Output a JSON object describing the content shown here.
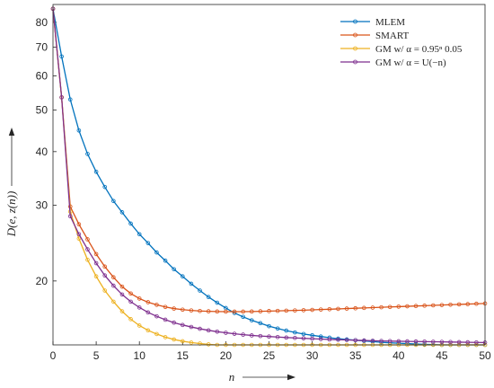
{
  "chart_data": {
    "type": "line",
    "xlabel": "n",
    "ylabel": "D(e, z(n))",
    "yscale": "log",
    "xlim": [
      0,
      50
    ],
    "ylim": [
      14.2,
      88
    ],
    "grid": false,
    "legend_position": "top-right",
    "xticks": [
      0,
      5,
      10,
      15,
      20,
      25,
      30,
      35,
      40,
      45,
      50
    ],
    "xtick_labels": [
      "0",
      "5",
      "10",
      "15",
      "20",
      "25",
      "30",
      "35",
      "40",
      "45",
      "50"
    ],
    "yticks": [
      20,
      30,
      40,
      50,
      60,
      70,
      80
    ],
    "ytick_labels": [
      "20",
      "30",
      "40",
      "50",
      "60",
      "70",
      "80"
    ],
    "series": [
      {
        "name": "MLEM",
        "color": "#0072BD",
        "x": [
          0,
          1,
          2,
          3,
          4,
          5,
          6,
          7,
          8,
          9,
          10,
          11,
          12,
          13,
          14,
          15,
          16,
          17,
          18,
          19,
          20,
          21,
          22,
          23,
          24,
          25,
          26,
          27,
          28,
          29,
          30,
          31,
          32,
          33,
          34,
          35,
          36,
          37,
          38,
          39,
          40,
          41,
          42,
          43,
          44,
          45,
          46,
          47,
          48,
          49,
          50
        ],
        "y": [
          86.0,
          66.6,
          52.9,
          44.8,
          39.5,
          35.9,
          33.1,
          30.7,
          28.9,
          27.2,
          25.7,
          24.5,
          23.3,
          22.3,
          21.3,
          20.5,
          19.7,
          19.0,
          18.35,
          17.8,
          17.3,
          16.85,
          16.5,
          16.2,
          15.95,
          15.7,
          15.5,
          15.33,
          15.18,
          15.05,
          14.95,
          14.85,
          14.76,
          14.68,
          14.62,
          14.56,
          14.5,
          14.45,
          14.4,
          14.36,
          14.33,
          14.3,
          14.27,
          14.24,
          14.22,
          14.2,
          14.18,
          14.17,
          14.15,
          14.13,
          14.1
        ]
      },
      {
        "name": "SMART",
        "color": "#D95319",
        "x": [
          0,
          1,
          2,
          3,
          4,
          5,
          6,
          7,
          8,
          9,
          10,
          11,
          12,
          13,
          14,
          15,
          16,
          17,
          18,
          19,
          20,
          21,
          22,
          23,
          24,
          25,
          26,
          27,
          28,
          29,
          30,
          31,
          32,
          33,
          34,
          35,
          36,
          37,
          38,
          39,
          40,
          41,
          42,
          43,
          44,
          45,
          46,
          47,
          48,
          49,
          50
        ],
        "y": [
          86.0,
          53.5,
          29.8,
          27.1,
          25.0,
          23.1,
          21.6,
          20.4,
          19.4,
          18.7,
          18.2,
          17.85,
          17.6,
          17.4,
          17.25,
          17.15,
          17.08,
          17.03,
          17.0,
          16.98,
          16.97,
          16.97,
          16.97,
          16.98,
          17.0,
          17.02,
          17.04,
          17.06,
          17.08,
          17.1,
          17.13,
          17.16,
          17.19,
          17.22,
          17.25,
          17.28,
          17.31,
          17.34,
          17.37,
          17.4,
          17.43,
          17.46,
          17.49,
          17.52,
          17.55,
          17.58,
          17.61,
          17.64,
          17.67,
          17.7,
          17.73
        ]
      },
      {
        "name": "GM w/ α = 0.95ⁿ 0.05",
        "color": "#EDB120",
        "x": [
          0,
          1,
          2,
          3,
          4,
          5,
          6,
          7,
          8,
          9,
          10,
          11,
          12,
          13,
          14,
          15,
          16,
          17,
          18,
          19,
          20,
          21,
          22,
          23,
          24,
          25,
          26,
          27,
          28,
          29,
          30,
          31,
          32,
          33,
          34,
          35,
          36,
          37,
          38,
          39,
          40,
          41,
          42,
          43,
          44,
          45,
          46,
          47,
          48,
          49,
          50
        ],
        "y": [
          86.0,
          53.5,
          29.0,
          25.1,
          22.4,
          20.5,
          19.0,
          17.9,
          17.0,
          16.3,
          15.75,
          15.35,
          15.05,
          14.8,
          14.62,
          14.48,
          14.38,
          14.3,
          14.24,
          14.19,
          14.15,
          14.11,
          14.08,
          14.05,
          14.02,
          14.0,
          13.98,
          13.96,
          13.94,
          13.92,
          13.9,
          13.88,
          13.86,
          13.84,
          13.82,
          13.8,
          13.8,
          13.8,
          13.8,
          13.8,
          13.8,
          13.8,
          13.81,
          13.82,
          13.83,
          13.84,
          13.85,
          13.86,
          13.87,
          13.88,
          13.9
        ]
      },
      {
        "name": "GM w/ α = U(−n)",
        "color": "#7E2F8E",
        "x": [
          0,
          1,
          2,
          3,
          4,
          5,
          6,
          7,
          8,
          9,
          10,
          11,
          12,
          13,
          14,
          15,
          16,
          17,
          18,
          19,
          20,
          21,
          22,
          23,
          24,
          25,
          26,
          27,
          28,
          29,
          30,
          31,
          32,
          33,
          34,
          35,
          36,
          37,
          38,
          39,
          40,
          41,
          42,
          43,
          44,
          45,
          46,
          47,
          48,
          49,
          50
        ],
        "y": [
          86.0,
          53.5,
          28.3,
          25.7,
          23.7,
          22.0,
          20.6,
          19.5,
          18.6,
          17.9,
          17.35,
          16.9,
          16.55,
          16.25,
          16.0,
          15.8,
          15.63,
          15.48,
          15.35,
          15.24,
          15.15,
          15.07,
          15.0,
          14.94,
          14.89,
          14.85,
          14.81,
          14.77,
          14.74,
          14.71,
          14.68,
          14.65,
          14.62,
          14.6,
          14.58,
          14.56,
          14.54,
          14.52,
          14.5,
          14.49,
          14.48,
          14.47,
          14.46,
          14.45,
          14.44,
          14.43,
          14.42,
          14.41,
          14.4,
          14.39,
          14.38
        ]
      }
    ]
  }
}
